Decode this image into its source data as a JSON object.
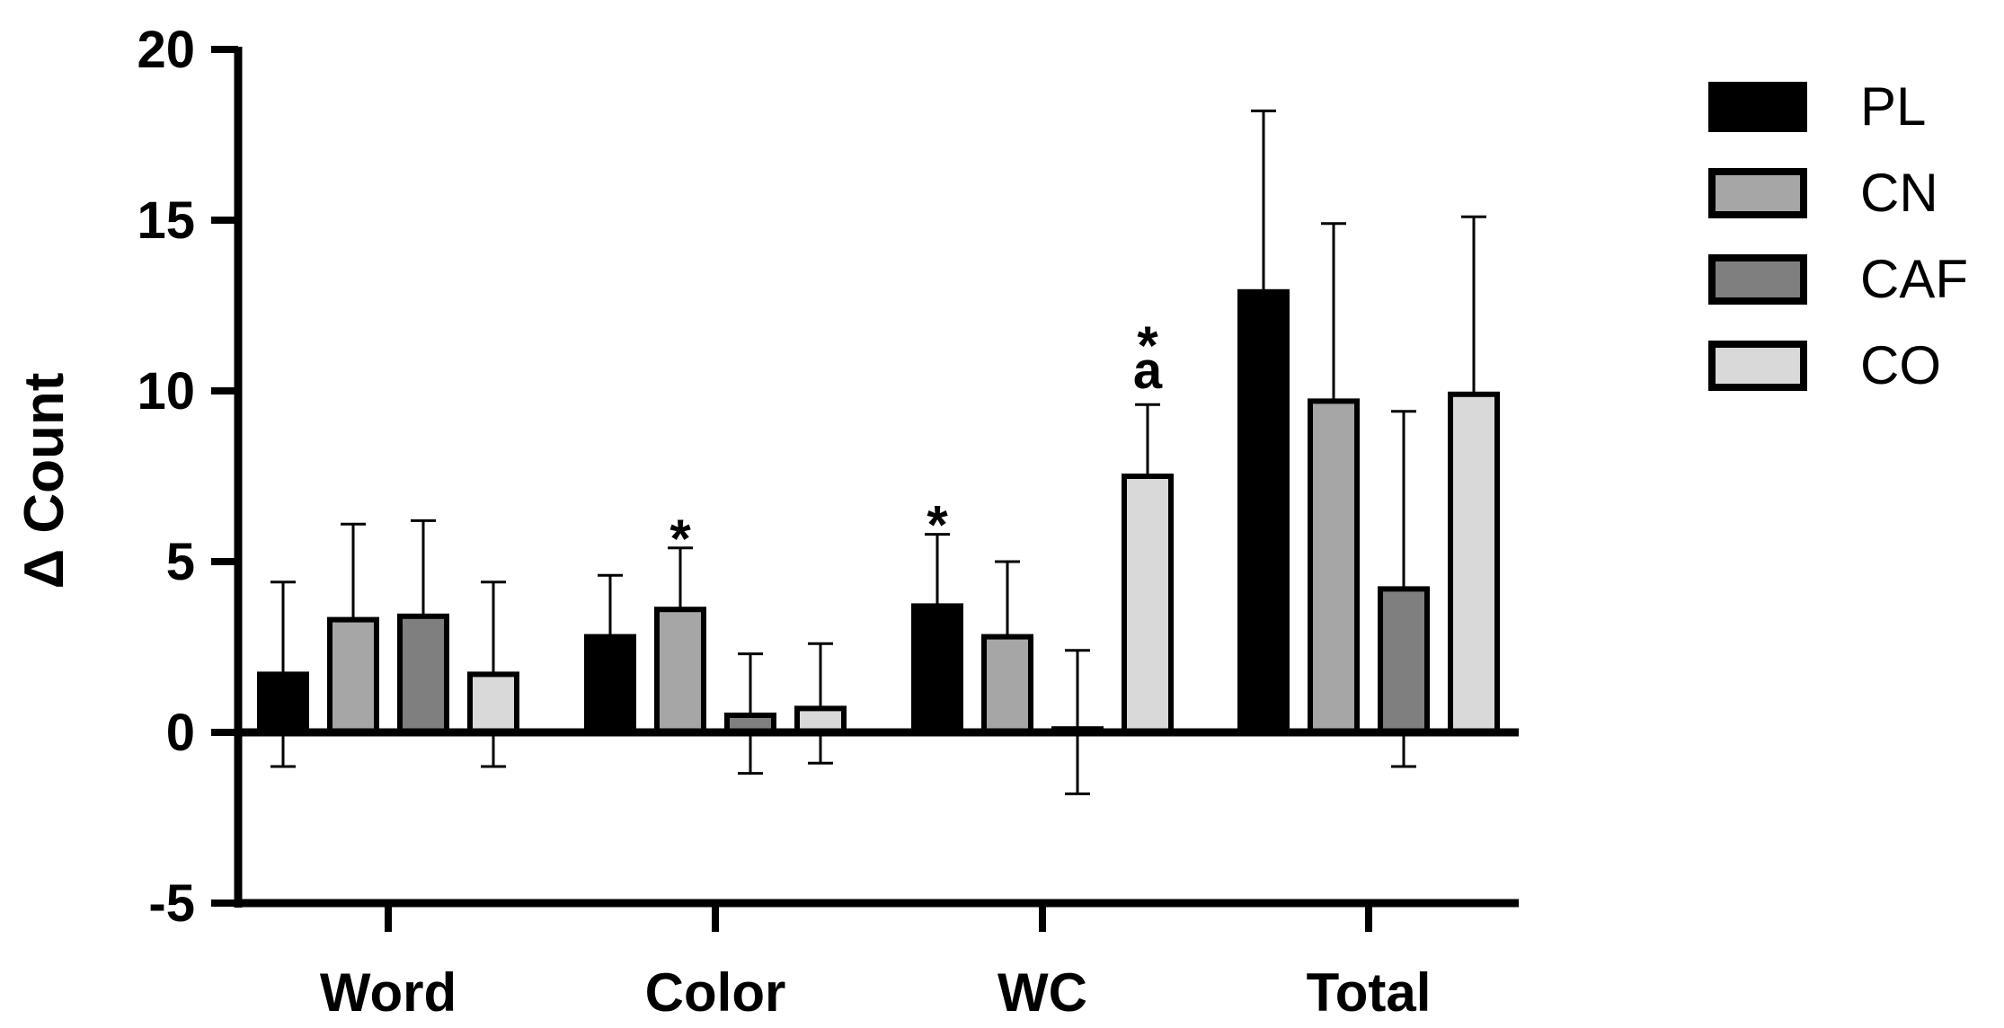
{
  "chart_data": {
    "type": "bar",
    "title": "",
    "xlabel": "",
    "ylabel": "Δ Count",
    "ylim": [
      -5,
      20
    ],
    "yticks": [
      -5,
      0,
      5,
      10,
      15,
      20
    ],
    "grid": false,
    "legend_position": "right",
    "categories": [
      "Word",
      "Color",
      "WC",
      "Total"
    ],
    "series": [
      {
        "name": "PL",
        "color": "#000000",
        "values": [
          1.7,
          2.8,
          3.7,
          12.9
        ],
        "error_plus": [
          2.7,
          1.8,
          2.1,
          5.3
        ],
        "error_minus": [
          2.7,
          0,
          0,
          0
        ]
      },
      {
        "name": "CN",
        "color": "#a6a6a6",
        "values": [
          3.3,
          3.6,
          2.8,
          9.7
        ],
        "error_plus": [
          2.8,
          1.8,
          2.2,
          5.2
        ],
        "error_minus": [
          0,
          0,
          0,
          0
        ]
      },
      {
        "name": "CAF",
        "color": "#7f7f7f",
        "values": [
          3.4,
          0.5,
          0.1,
          4.2
        ],
        "error_plus": [
          2.8,
          1.8,
          2.3,
          5.2
        ],
        "error_minus": [
          0,
          1.7,
          1.9,
          5.2
        ]
      },
      {
        "name": "CO",
        "color": "#d9d9d9",
        "values": [
          1.7,
          0.7,
          7.5,
          9.9
        ],
        "error_plus": [
          2.7,
          1.9,
          2.1,
          5.2
        ],
        "error_minus": [
          2.7,
          1.6,
          0,
          0
        ]
      }
    ],
    "annotations": [
      {
        "text": "*",
        "category": "Color",
        "series": "CN"
      },
      {
        "text": "*",
        "category": "WC",
        "series": "PL"
      },
      {
        "text": "a",
        "category": "WC",
        "series": "CO"
      },
      {
        "text": "*",
        "category": "WC",
        "series": "CO"
      }
    ]
  }
}
